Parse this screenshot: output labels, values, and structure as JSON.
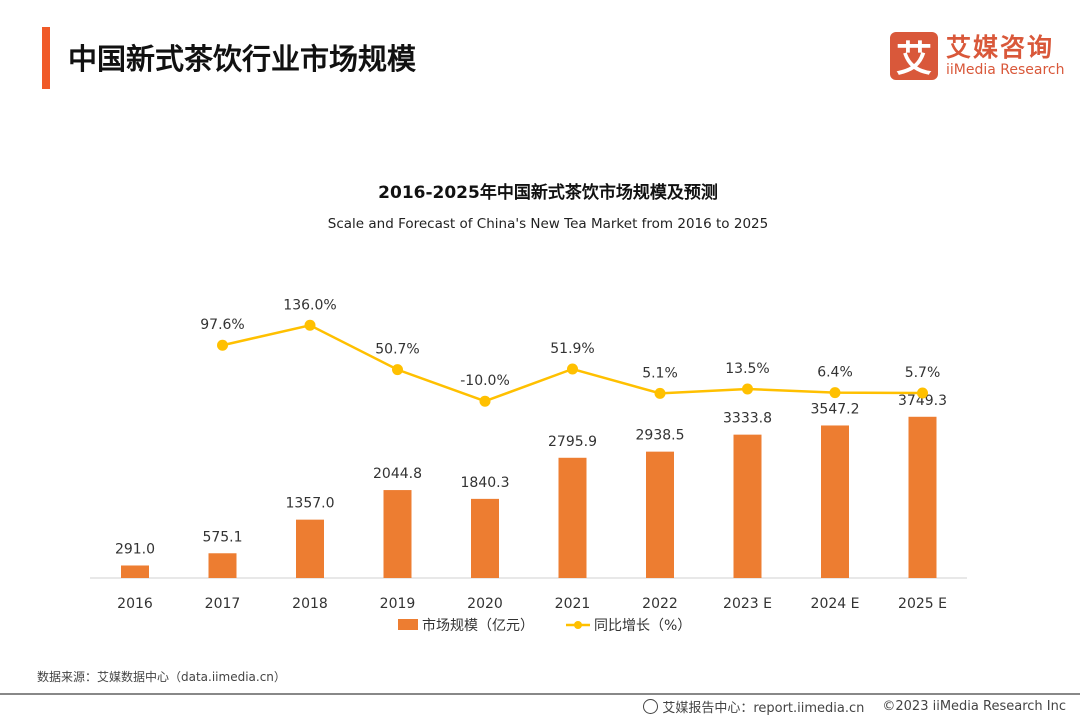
{
  "header": {
    "title": "中国新式茶饮行业市场规模"
  },
  "logo": {
    "mark": "艾",
    "cn": "艾媒咨询",
    "en": "iiMedia Research"
  },
  "chart_data": {
    "type": "bar+line",
    "title": "2016-2025年中国新式茶饮市场规模及预测",
    "subtitle": "Scale and Forecast of China's New Tea Market from 2016 to 2025",
    "categories": [
      "2016",
      "2017",
      "2018",
      "2019",
      "2020",
      "2021",
      "2022",
      "2023 E",
      "2024 E",
      "2025 E"
    ],
    "series": [
      {
        "name": "市场规模（亿元）",
        "type": "bar",
        "color": "#ed7d31",
        "values": [
          291.0,
          575.1,
          1357.0,
          2044.8,
          1840.3,
          2795.9,
          2938.5,
          3333.8,
          3547.2,
          3749.3
        ],
        "labels": [
          "291.0",
          "575.1",
          "1357.0",
          "2044.8",
          "1840.3",
          "2795.9",
          "2938.5",
          "3333.8",
          "3547.2",
          "3749.3"
        ],
        "ylim": [
          0,
          4000
        ]
      },
      {
        "name": "同比增长（%）",
        "type": "line",
        "color": "#ffc000",
        "values": [
          null,
          97.6,
          136.0,
          50.7,
          -10.0,
          51.9,
          5.1,
          13.5,
          6.4,
          5.7
        ],
        "labels": [
          "",
          "97.6%",
          "136.0%",
          "50.7%",
          "-10.0%",
          "51.9%",
          "5.1%",
          "13.5%",
          "6.4%",
          "5.7%"
        ],
        "ylim": [
          -150,
          150
        ]
      }
    ],
    "legend": "bottom",
    "grid": false
  },
  "footer": {
    "source": "数据来源：艾媒数据中心（data.iimedia.cn）",
    "report": "艾媒报告中心：report.iimedia.cn",
    "copyright": "©2023  iiMedia Research  Inc"
  }
}
